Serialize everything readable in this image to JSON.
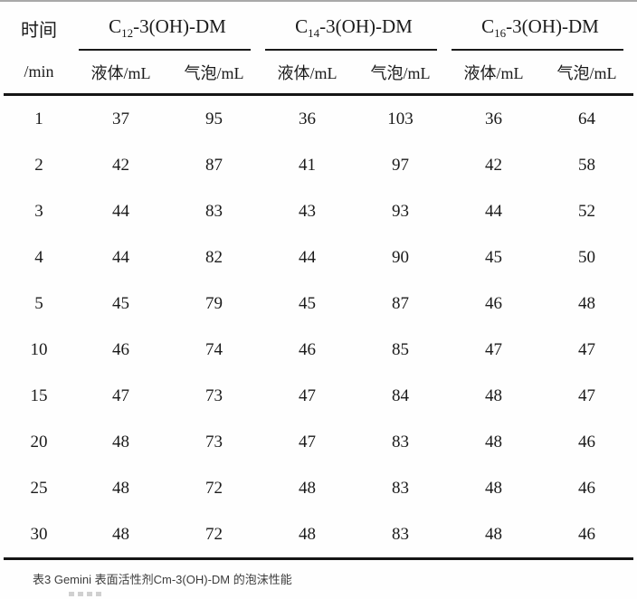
{
  "table": {
    "time_header": {
      "line1": "时间",
      "line2": "/min"
    },
    "groups": [
      {
        "prefix": "C",
        "sub": "12",
        "suffix": "-3(OH)-DM"
      },
      {
        "prefix": "C",
        "sub": "14",
        "suffix": "-3(OH)-DM"
      },
      {
        "prefix": "C",
        "sub": "16",
        "suffix": "-3(OH)-DM"
      }
    ],
    "subheaders": [
      "液体/mL",
      "气泡/mL",
      "液体/mL",
      "气泡/mL",
      "液体/mL",
      "气泡/mL"
    ],
    "rows": [
      {
        "time": "1",
        "values": [
          "37",
          "95",
          "36",
          "103",
          "36",
          "64"
        ]
      },
      {
        "time": "2",
        "values": [
          "42",
          "87",
          "41",
          "97",
          "42",
          "58"
        ]
      },
      {
        "time": "3",
        "values": [
          "44",
          "83",
          "43",
          "93",
          "44",
          "52"
        ]
      },
      {
        "time": "4",
        "values": [
          "44",
          "82",
          "44",
          "90",
          "45",
          "50"
        ]
      },
      {
        "time": "5",
        "values": [
          "45",
          "79",
          "45",
          "87",
          "46",
          "48"
        ]
      },
      {
        "time": "10",
        "values": [
          "46",
          "74",
          "46",
          "85",
          "47",
          "47"
        ]
      },
      {
        "time": "15",
        "values": [
          "47",
          "73",
          "47",
          "84",
          "48",
          "47"
        ]
      },
      {
        "time": "20",
        "values": [
          "48",
          "73",
          "47",
          "83",
          "48",
          "46"
        ]
      },
      {
        "time": "25",
        "values": [
          "48",
          "72",
          "48",
          "83",
          "48",
          "46"
        ]
      },
      {
        "time": "30",
        "values": [
          "48",
          "72",
          "48",
          "83",
          "48",
          "46"
        ]
      }
    ]
  },
  "caption": "表3 Gemini 表面活性剂Cm-3(OH)-DM 的泡沫性能",
  "colors": {
    "table_text": "#1a1a1a",
    "rule": "#151515",
    "caption_text": "#3c3c3c",
    "top_crop_line": "#a9a9a9",
    "background": "#ffffff"
  }
}
